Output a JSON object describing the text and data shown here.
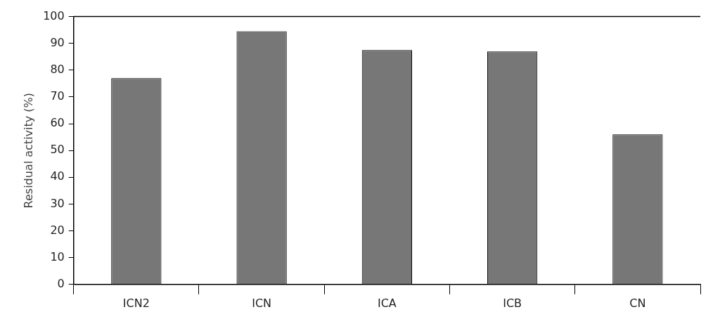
{
  "chart_data": {
    "type": "bar",
    "ylabel": "Residual activity (%)",
    "categories": [
      "ICN2",
      "ICN",
      "ICA",
      "ICB",
      "CN"
    ],
    "values": [
      77,
      94.5,
      87.5,
      87,
      56
    ],
    "color": "#777777",
    "ylim": [
      0,
      100
    ],
    "yticks": [
      0,
      10,
      20,
      30,
      40,
      50,
      60,
      70,
      80,
      90,
      100
    ],
    "grid": false,
    "legend": false
  }
}
